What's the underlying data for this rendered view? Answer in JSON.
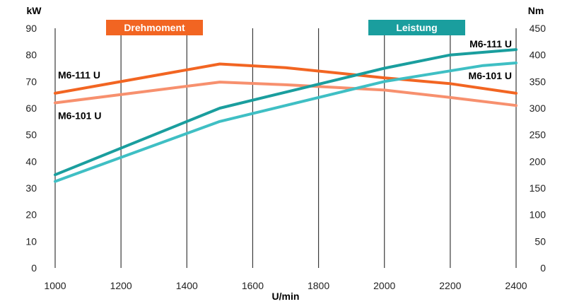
{
  "chart_data": {
    "type": "line",
    "x_label": "U/min",
    "x": [
      1000,
      1500,
      1700,
      2000,
      2200,
      2300,
      2400
    ],
    "x_ticks": [
      1000,
      1200,
      1400,
      1600,
      1800,
      2000,
      2200,
      2400
    ],
    "xlim": [
      1000,
      2400
    ],
    "left_axis": {
      "label": "kW",
      "lim": [
        0,
        90
      ],
      "ticks": [
        0,
        10,
        20,
        30,
        40,
        50,
        60,
        70,
        80,
        90
      ]
    },
    "right_axis": {
      "label": "Nm",
      "lim": [
        0,
        450
      ],
      "ticks": [
        0,
        50,
        100,
        150,
        200,
        250,
        300,
        350,
        400,
        450
      ]
    },
    "vertical_gridlines": true,
    "legend": [
      {
        "label": "Drehmoment",
        "color": "#f26522"
      },
      {
        "label": "Leistung",
        "color": "#1a9e9e"
      }
    ],
    "series": [
      {
        "name": "M6-111 U",
        "group": "Drehmoment",
        "axis": "right",
        "color": "#f26522",
        "label_side": "left",
        "x": [
          1000,
          1500,
          1700,
          2000,
          2200,
          2400
        ],
        "values": [
          328,
          383,
          376,
          357,
          346,
          328
        ]
      },
      {
        "name": "M6-101 U",
        "group": "Drehmoment",
        "axis": "right",
        "color": "#f7906e",
        "label_side": "left",
        "x": [
          1000,
          1500,
          1700,
          2000,
          2200,
          2400
        ],
        "values": [
          310,
          349,
          344,
          334,
          320,
          305
        ]
      },
      {
        "name": "M6-111 U",
        "group": "Leistung",
        "axis": "left",
        "color": "#1a9e9e",
        "label_side": "right",
        "x": [
          1000,
          1500,
          2000,
          2200,
          2400
        ],
        "values": [
          35,
          60,
          75,
          80,
          82
        ]
      },
      {
        "name": "M6-101 U",
        "group": "Leistung",
        "axis": "left",
        "color": "#3fbfc4",
        "label_side": "right",
        "x": [
          1000,
          1500,
          2000,
          2300,
          2400
        ],
        "values": [
          32.5,
          55,
          70,
          76,
          77
        ]
      }
    ]
  }
}
